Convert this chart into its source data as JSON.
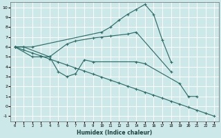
{
  "xlabel": "Humidex (Indice chaleur)",
  "bg_color": "#cce8e8",
  "grid_color": "#ffffff",
  "line_color": "#2e6e68",
  "xlim": [
    -0.5,
    23.5
  ],
  "ylim": [
    -1.5,
    10.5
  ],
  "xticks": [
    0,
    1,
    2,
    3,
    4,
    5,
    6,
    7,
    8,
    9,
    10,
    11,
    12,
    13,
    14,
    15,
    16,
    17,
    18,
    19,
    20,
    21,
    22,
    23
  ],
  "yticks": [
    -1,
    0,
    1,
    2,
    3,
    4,
    5,
    6,
    7,
    8,
    9,
    10
  ],
  "series": [
    {
      "x": [
        0,
        1,
        2,
        10,
        11,
        12,
        13,
        14,
        15,
        16,
        17,
        18
      ],
      "y": [
        6.0,
        6.0,
        6.0,
        7.5,
        8.0,
        8.7,
        9.3,
        9.8,
        10.3,
        9.3,
        6.7,
        4.5
      ]
    },
    {
      "x": [
        0,
        1,
        4,
        6,
        7,
        9,
        10,
        11,
        13,
        14,
        18
      ],
      "y": [
        6.0,
        6.0,
        5.0,
        6.3,
        6.6,
        6.9,
        7.0,
        7.1,
        7.3,
        7.5,
        3.5
      ]
    },
    {
      "x": [
        0,
        2,
        3,
        4,
        5,
        6,
        7,
        8,
        9,
        14,
        15,
        19,
        20,
        21
      ],
      "y": [
        6.0,
        5.0,
        5.0,
        5.0,
        3.5,
        3.0,
        3.3,
        4.7,
        4.5,
        4.5,
        4.3,
        2.3,
        1.0,
        1.0
      ]
    },
    {
      "x": [
        0,
        1,
        2,
        3,
        4,
        5,
        6,
        7,
        8,
        9,
        10,
        11,
        12,
        13,
        14,
        15,
        16,
        17,
        18,
        19,
        20,
        21,
        22,
        23
      ],
      "y": [
        6.0,
        5.69,
        5.39,
        5.09,
        4.78,
        4.48,
        4.17,
        3.87,
        3.57,
        3.26,
        2.96,
        2.65,
        2.35,
        2.04,
        1.74,
        1.43,
        1.13,
        0.83,
        0.52,
        0.22,
        -0.09,
        -0.39,
        -0.7,
        -1.0
      ]
    }
  ]
}
